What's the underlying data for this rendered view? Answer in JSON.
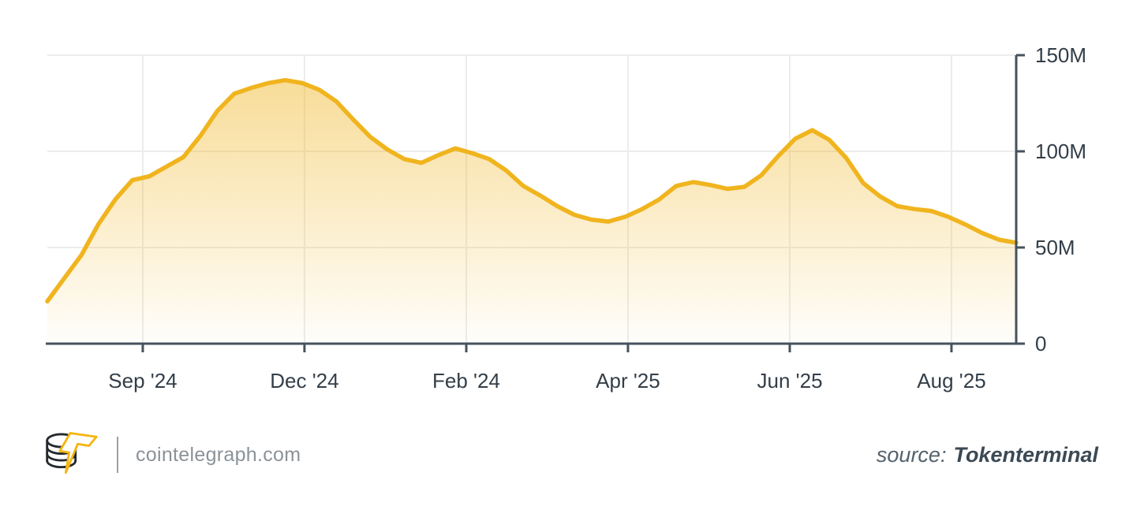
{
  "chart_data": {
    "type": "area",
    "title": "",
    "xlabel": "",
    "ylabel": "",
    "ylim": [
      0,
      150
    ],
    "grid": true,
    "legend_position": "none",
    "y_axis_side": "right",
    "y_ticks": [
      {
        "label": "0",
        "value": 0
      },
      {
        "label": "50M",
        "value": 50
      },
      {
        "label": "100M",
        "value": 100
      },
      {
        "label": "150M",
        "value": 150
      }
    ],
    "x_tick_labels": [
      "Sep '24",
      "Dec '24",
      "Feb '24",
      "Apr '25",
      "Jun '25",
      "Aug '25"
    ],
    "x_tick_positions": [
      0.0985,
      0.2654,
      0.4324,
      0.5993,
      0.7663,
      0.9332
    ],
    "values_unit": "M",
    "values": [
      22,
      34,
      46,
      62,
      75,
      85,
      87,
      92,
      97,
      108,
      121,
      130,
      133,
      135.5,
      137,
      135.5,
      132,
      126,
      116.5,
      107.5,
      101,
      96,
      94,
      98,
      101.5,
      99,
      96,
      90,
      82,
      77,
      71.5,
      67,
      64.5,
      63.5,
      66,
      70,
      75,
      82,
      84,
      82.5,
      80.5,
      81.5,
      87.5,
      97.5,
      106.5,
      111,
      106,
      96.5,
      83.5,
      76.5,
      71.5,
      70,
      69,
      66,
      62,
      57.5,
      54,
      52.5
    ],
    "colors": {
      "line": "#F0B41E",
      "fill": "#F0B41E",
      "axis": "#46525c",
      "tick_text": "#333e48",
      "gridline": "#ececec"
    }
  },
  "footer": {
    "brand": "cointelegraph.com",
    "source_label": "source:",
    "source_name": "Tokenterminal",
    "logo_colors": {
      "coins": "#24292e",
      "bolt": "#f5b50f"
    }
  }
}
